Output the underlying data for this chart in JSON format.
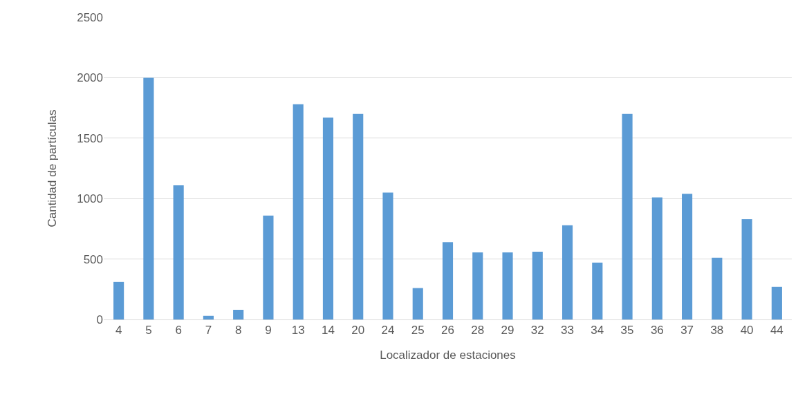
{
  "chart_data": {
    "type": "bar",
    "xlabel": "Localizador de estaciones",
    "ylabel": "Cantidad de partículas",
    "categories": [
      "4",
      "5",
      "6",
      "7",
      "8",
      "9",
      "13",
      "14",
      "20",
      "24",
      "25",
      "26",
      "28",
      "29",
      "32",
      "33",
      "34",
      "35",
      "36",
      "37",
      "38",
      "40",
      "44"
    ],
    "values": [
      310,
      2000,
      1110,
      30,
      80,
      860,
      1780,
      1670,
      1700,
      1050,
      260,
      640,
      555,
      555,
      560,
      780,
      470,
      1700,
      1010,
      1040,
      510,
      830,
      270
    ],
    "color": "#5b9bd5",
    "ylim": [
      0,
      2500
    ],
    "yticks": [
      0,
      500,
      1000,
      1500,
      2000,
      2500
    ],
    "grid": "y",
    "legend": false
  }
}
